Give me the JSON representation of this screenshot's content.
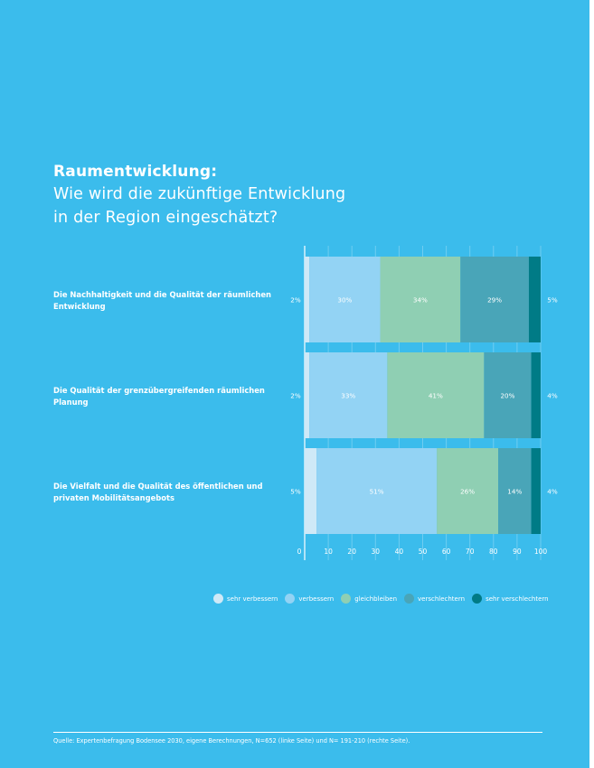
{
  "title": {
    "bold": "Raumentwicklung:",
    "line1": "Wie wird die zukünftige Entwicklung",
    "line2": "in der Region eingeschätzt?"
  },
  "colors": {
    "background": "#3bbcec",
    "sehr_verbessern": "#cfe9f7",
    "verbessern": "#93d3f4",
    "gleichbleiben": "#8fcfb3",
    "verschlechtern": "#49a5b8",
    "sehr_verschlechtern": "#007b86"
  },
  "chart_data": {
    "type": "bar",
    "orientation": "horizontal",
    "stacked": true,
    "categories": [
      "Die Nachhaltigkeit und die Qualität der räumlichen Entwicklung",
      "Die Qualität der grenzübergreifenden räumlichen Planung",
      "Die Vielfalt und die Qualität des öffentlichen und privaten Mobilitätsangebots"
    ],
    "category_lines": [
      [
        "Die Nachhaltigkeit und die Qualität der räumlichen",
        "Entwicklung"
      ],
      [
        "Die Qualität der grenzübergreifenden räumlichen",
        "Planung"
      ],
      [
        "Die Vielfalt und die Qualität des öffentlichen und",
        "privaten Mobilitätsangebots"
      ]
    ],
    "series": [
      {
        "name": "sehr verbessern",
        "values": [
          2,
          2,
          5
        ],
        "labels": [
          "2%",
          "2%",
          "5%"
        ]
      },
      {
        "name": "verbessern",
        "values": [
          30,
          33,
          51
        ],
        "labels": [
          "30%",
          "33%",
          "51%"
        ]
      },
      {
        "name": "gleichbleiben",
        "values": [
          34,
          41,
          26
        ],
        "labels": [
          "34%",
          "41%",
          "26%"
        ]
      },
      {
        "name": "verschlechtern",
        "values": [
          29,
          20,
          14
        ],
        "labels": [
          "29%",
          "20%",
          "14%"
        ]
      },
      {
        "name": "sehr verschlechtern",
        "values": [
          5,
          4,
          4
        ],
        "labels": [
          "5%",
          "4%",
          "4%"
        ]
      }
    ],
    "xlim": [
      0,
      100
    ],
    "xticks": [
      0,
      10,
      20,
      30,
      40,
      50,
      60,
      70,
      80,
      90,
      100
    ],
    "xtick_labels": [
      "0",
      "10",
      "20",
      "30",
      "40",
      "50",
      "60",
      "70",
      "80",
      "90",
      "100"
    ],
    "grid": true,
    "legend_position": "bottom"
  },
  "legend": [
    {
      "label": "sehr verbessern",
      "color": "#cfe9f7"
    },
    {
      "label": "verbessern",
      "color": "#93d3f4"
    },
    {
      "label": "gleichbleiben",
      "color": "#8fcfb3"
    },
    {
      "label": "verschlechtern",
      "color": "#49a5b8"
    },
    {
      "label": "sehr verschlechtern",
      "color": "#007b86"
    }
  ],
  "footer": {
    "source": "Quelle: Expertenbefragung Bodensee 2030, eigene Berechnungen, N=652 (linke Seite) und N= 191-210 (rechte Seite)."
  }
}
